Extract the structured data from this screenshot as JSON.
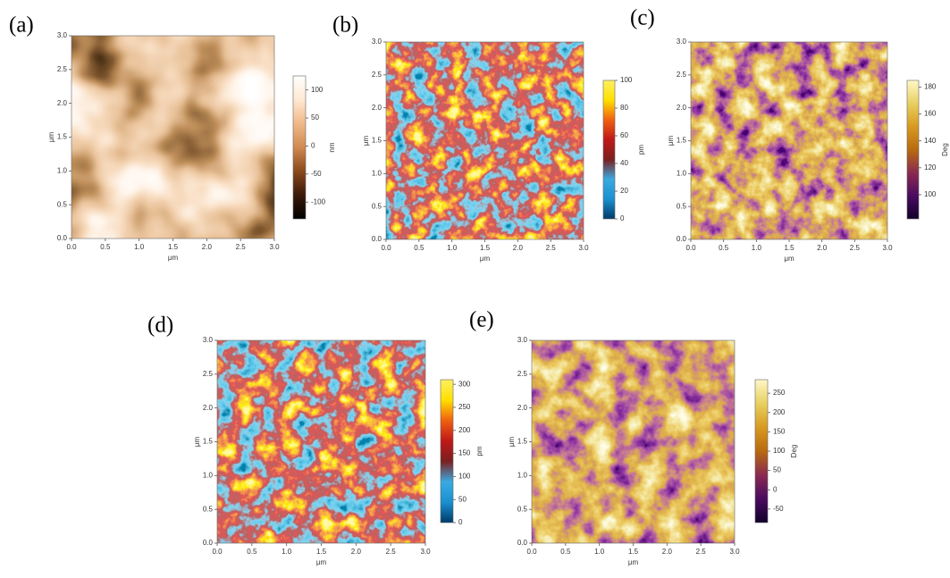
{
  "panels": [
    {
      "label": "(a)",
      "x_label": "μm",
      "y_label": "μm",
      "xlim": [
        0,
        3
      ],
      "ylim": [
        0,
        3
      ],
      "xticks": [
        {
          "value": 0,
          "label": "0.0"
        },
        {
          "value": 0.5,
          "label": "0.5"
        },
        {
          "value": 1,
          "label": "1.0"
        },
        {
          "value": 1.5,
          "label": "1.5"
        },
        {
          "value": 2,
          "label": "2.0"
        },
        {
          "value": 2.5,
          "label": "2.5"
        },
        {
          "value": 3,
          "label": "3.0"
        }
      ],
      "yticks": [
        {
          "value": 0,
          "label": "0.0"
        },
        {
          "value": 0.5,
          "label": "0.5"
        },
        {
          "value": 1,
          "label": "1.0"
        },
        {
          "value": 1.5,
          "label": "1.5"
        },
        {
          "value": 2,
          "label": "2.0"
        },
        {
          "value": 2.5,
          "label": "2.5"
        },
        {
          "value": 3,
          "label": "3.0"
        }
      ],
      "colorbar_label": "nm",
      "colorbar_lim": [
        -130,
        125
      ],
      "colorbar_ticks": [
        -100,
        -50,
        0,
        50,
        100
      ]
    },
    {
      "label": "(b)",
      "x_label": "μm",
      "y_label": "μm",
      "xlim": [
        0,
        3
      ],
      "ylim": [
        0,
        3
      ],
      "xticks": [
        {
          "value": 0,
          "label": "0.0"
        },
        {
          "value": 0.5,
          "label": "0.5"
        },
        {
          "value": 1,
          "label": "1.0"
        },
        {
          "value": 1.5,
          "label": "1.5"
        },
        {
          "value": 2,
          "label": "2.0"
        },
        {
          "value": 2.5,
          "label": "2.5"
        },
        {
          "value": 3,
          "label": "3.0"
        }
      ],
      "yticks": [
        {
          "value": 0,
          "label": "0.0"
        },
        {
          "value": 0.5,
          "label": "0.5"
        },
        {
          "value": 1,
          "label": "1.0"
        },
        {
          "value": 1.5,
          "label": "1.5"
        },
        {
          "value": 2,
          "label": "2.0"
        },
        {
          "value": 2.5,
          "label": "2.5"
        },
        {
          "value": 3,
          "label": "3.0"
        }
      ],
      "colorbar_label": "pm",
      "colorbar_lim": [
        0,
        100
      ],
      "colorbar_ticks": [
        0,
        20,
        40,
        60,
        80,
        100
      ]
    },
    {
      "label": "(c)",
      "x_label": "μm",
      "y_label": "μm",
      "xlim": [
        0,
        3
      ],
      "ylim": [
        0,
        3
      ],
      "xticks": [
        {
          "value": 0,
          "label": "0.0"
        },
        {
          "value": 0.5,
          "label": "0.5"
        },
        {
          "value": 1,
          "label": "1.0"
        },
        {
          "value": 1.5,
          "label": "1.5"
        },
        {
          "value": 2,
          "label": "2.0"
        },
        {
          "value": 2.5,
          "label": "2.5"
        },
        {
          "value": 3,
          "label": "3.0"
        }
      ],
      "yticks": [
        {
          "value": 0,
          "label": "0.0"
        },
        {
          "value": 0.5,
          "label": "0.5"
        },
        {
          "value": 1,
          "label": "1.0"
        },
        {
          "value": 1.5,
          "label": "1.5"
        },
        {
          "value": 2,
          "label": "2.0"
        },
        {
          "value": 2.5,
          "label": "2.5"
        },
        {
          "value": 3,
          "label": "3.0"
        }
      ],
      "colorbar_label": "Deg",
      "colorbar_lim": [
        82,
        185
      ],
      "colorbar_ticks": [
        100,
        120,
        140,
        160,
        180
      ]
    },
    {
      "label": "(d)",
      "x_label": "μm",
      "y_label": "μm",
      "xlim": [
        0,
        3
      ],
      "ylim": [
        0,
        3
      ],
      "xticks": [
        {
          "value": 0,
          "label": "0.0"
        },
        {
          "value": 0.5,
          "label": "0.5"
        },
        {
          "value": 1,
          "label": "1.0"
        },
        {
          "value": 1.5,
          "label": "1.5"
        },
        {
          "value": 2,
          "label": "2.0"
        },
        {
          "value": 2.5,
          "label": "2.5"
        },
        {
          "value": 3,
          "label": "3.0"
        }
      ],
      "yticks": [
        {
          "value": 0,
          "label": "0.0"
        },
        {
          "value": 0.5,
          "label": "0.5"
        },
        {
          "value": 1,
          "label": "1.0"
        },
        {
          "value": 1.5,
          "label": "1.5"
        },
        {
          "value": 2,
          "label": "2.0"
        },
        {
          "value": 2.5,
          "label": "2.5"
        },
        {
          "value": 3,
          "label": "3.0"
        }
      ],
      "colorbar_label": "pm",
      "colorbar_lim": [
        0,
        310
      ],
      "colorbar_ticks": [
        0,
        50,
        100,
        150,
        200,
        250,
        300
      ]
    },
    {
      "label": "(e)",
      "x_label": "μm",
      "y_label": "μm",
      "xlim": [
        0,
        3
      ],
      "ylim": [
        0,
        3
      ],
      "xticks": [
        {
          "value": 0,
          "label": "0.0"
        },
        {
          "value": 0.5,
          "label": "0.5"
        },
        {
          "value": 1,
          "label": "1.0"
        },
        {
          "value": 1.5,
          "label": "1.5"
        },
        {
          "value": 2,
          "label": "2.0"
        },
        {
          "value": 2.5,
          "label": "2.5"
        },
        {
          "value": 3,
          "label": "3.0"
        }
      ],
      "yticks": [
        {
          "value": 0,
          "label": "0.0"
        },
        {
          "value": 0.5,
          "label": "0.5"
        },
        {
          "value": 1,
          "label": "1.0"
        },
        {
          "value": 1.5,
          "label": "1.5"
        },
        {
          "value": 2,
          "label": "2.0"
        },
        {
          "value": 2.5,
          "label": "2.5"
        },
        {
          "value": 3,
          "label": "3.0"
        }
      ],
      "colorbar_label": "Deg",
      "colorbar_lim": [
        -85,
        285
      ],
      "colorbar_ticks": [
        -50,
        0,
        50,
        100,
        150,
        200,
        250
      ]
    }
  ]
}
